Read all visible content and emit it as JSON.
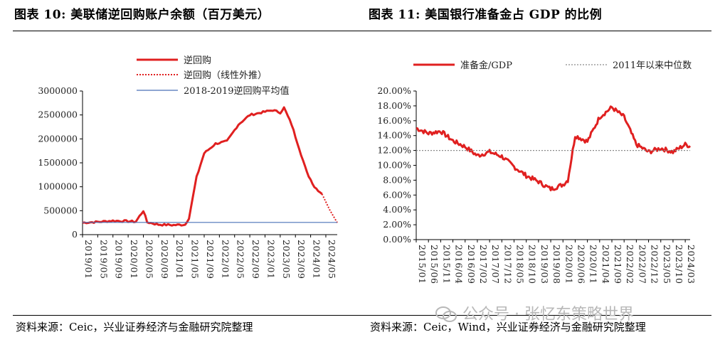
{
  "left": {
    "title": "图表 10:  美联储逆回购账户余额（百万美元）",
    "source": "资料来源：Ceic，兴业证券经济与金融研究院整理"
  },
  "right": {
    "title": "图表 11:  美国银行准备金占 GDP 的比例",
    "source": "资料来源：Ceic，Wind，兴业证券经济与金融研究院整理"
  },
  "watermark": "公众号 · 张忆东策略世界",
  "colors": {
    "series_red": "#e02020",
    "avg_blue": "#4a72b8",
    "median_gray": "#8a8a8a"
  },
  "chart_data": [
    {
      "type": "line",
      "title": "美联储逆回购账户余额（百万美元）",
      "ylim": [
        0,
        3000000
      ],
      "y_ticks": [
        "0",
        "500000",
        "1000000",
        "1500000",
        "2000000",
        "2500000",
        "3000000"
      ],
      "x_ticks": [
        "2019/01",
        "2019/05",
        "2019/09",
        "2020/01",
        "2020/05",
        "2020/09",
        "2021/01",
        "2021/05",
        "2021/09",
        "2022/01",
        "2022/05",
        "2022/09",
        "2023/01",
        "2023/05",
        "2023/09",
        "2024/01",
        "2024/05"
      ],
      "legend": [
        "逆回购",
        "逆回购（线性外推）",
        "2018-2019逆回购平均值"
      ],
      "series": [
        {
          "name": "逆回购",
          "style": "solid",
          "points": [
            [
              "2019/01",
              250000
            ],
            [
              "2019/05",
              265000
            ],
            [
              "2019/09",
              290000
            ],
            [
              "2020/01",
              280000
            ],
            [
              "2020/03",
              270000
            ],
            [
              "2020/05",
              500000
            ],
            [
              "2020/06",
              260000
            ],
            [
              "2020/09",
              210000
            ],
            [
              "2021/01",
              200000
            ],
            [
              "2021/04",
              210000
            ],
            [
              "2021/05",
              350000
            ],
            [
              "2021/07",
              1200000
            ],
            [
              "2021/09",
              1700000
            ],
            [
              "2021/12",
              1900000
            ],
            [
              "2022/03",
              1950000
            ],
            [
              "2022/06",
              2300000
            ],
            [
              "2022/09",
              2500000
            ],
            [
              "2022/12",
              2550000
            ],
            [
              "2023/03",
              2600000
            ],
            [
              "2023/05",
              2550000
            ],
            [
              "2023/06",
              2650000
            ],
            [
              "2023/08",
              2300000
            ],
            [
              "2023/10",
              1800000
            ],
            [
              "2023/12",
              1300000
            ],
            [
              "2024/02",
              1000000
            ],
            [
              "2024/04",
              850000
            ]
          ]
        },
        {
          "name": "逆回购（线性外推）",
          "style": "dotted",
          "points": [
            [
              "2024/04",
              850000
            ],
            [
              "2024/06",
              520000
            ],
            [
              "2024/08",
              250000
            ]
          ]
        },
        {
          "name": "2018-2019逆回购平均值",
          "style": "solid-thin",
          "points": [
            [
              "2019/01",
              255000
            ],
            [
              "2024/08",
              255000
            ]
          ]
        }
      ]
    },
    {
      "type": "line",
      "title": "美国银行准备金占 GDP 的比例",
      "ylim": [
        0,
        20
      ],
      "y_ticks": [
        "0.00%",
        "2.00%",
        "4.00%",
        "6.00%",
        "8.00%",
        "10.00%",
        "12.00%",
        "14.00%",
        "16.00%",
        "18.00%",
        "20.00%"
      ],
      "x_ticks": [
        "2015/01",
        "2015/06",
        "2015/11",
        "2016/04",
        "2016/09",
        "2017/02",
        "2017/07",
        "2017/12",
        "2018/05",
        "2018/10",
        "2019/03",
        "2019/08",
        "2020/01",
        "2020/06",
        "2020/11",
        "2021/04",
        "2021/09",
        "2022/02",
        "2022/07",
        "2022/12",
        "2023/05",
        "2023/10",
        "2024/03"
      ],
      "legend": [
        "准备金/GDP",
        "2011年以来中位数"
      ],
      "series": [
        {
          "name": "准备金/GDP",
          "style": "solid",
          "points": [
            [
              "2015/01",
              15.0
            ],
            [
              "2015/06",
              14.3
            ],
            [
              "2015/11",
              14.6
            ],
            [
              "2016/04",
              13.3
            ],
            [
              "2016/09",
              12.5
            ],
            [
              "2017/02",
              11.3
            ],
            [
              "2017/07",
              11.8
            ],
            [
              "2017/12",
              11.2
            ],
            [
              "2018/05",
              9.8
            ],
            [
              "2018/10",
              8.6
            ],
            [
              "2019/03",
              7.8
            ],
            [
              "2019/08",
              6.8
            ],
            [
              "2020/01",
              7.4
            ],
            [
              "2020/03",
              8.0
            ],
            [
              "2020/06",
              14.0
            ],
            [
              "2020/11",
              13.2
            ],
            [
              "2021/04",
              16.5
            ],
            [
              "2021/09",
              17.8
            ],
            [
              "2022/02",
              16.5
            ],
            [
              "2022/07",
              12.8
            ],
            [
              "2022/12",
              11.8
            ],
            [
              "2023/05",
              12.3
            ],
            [
              "2023/10",
              11.8
            ],
            [
              "2024/03",
              12.8
            ],
            [
              "2024/05",
              12.6
            ]
          ]
        },
        {
          "name": "2011年以来中位数",
          "style": "dotted",
          "points": [
            [
              "2015/01",
              12.0
            ],
            [
              "2024/05",
              12.0
            ]
          ]
        }
      ]
    }
  ]
}
